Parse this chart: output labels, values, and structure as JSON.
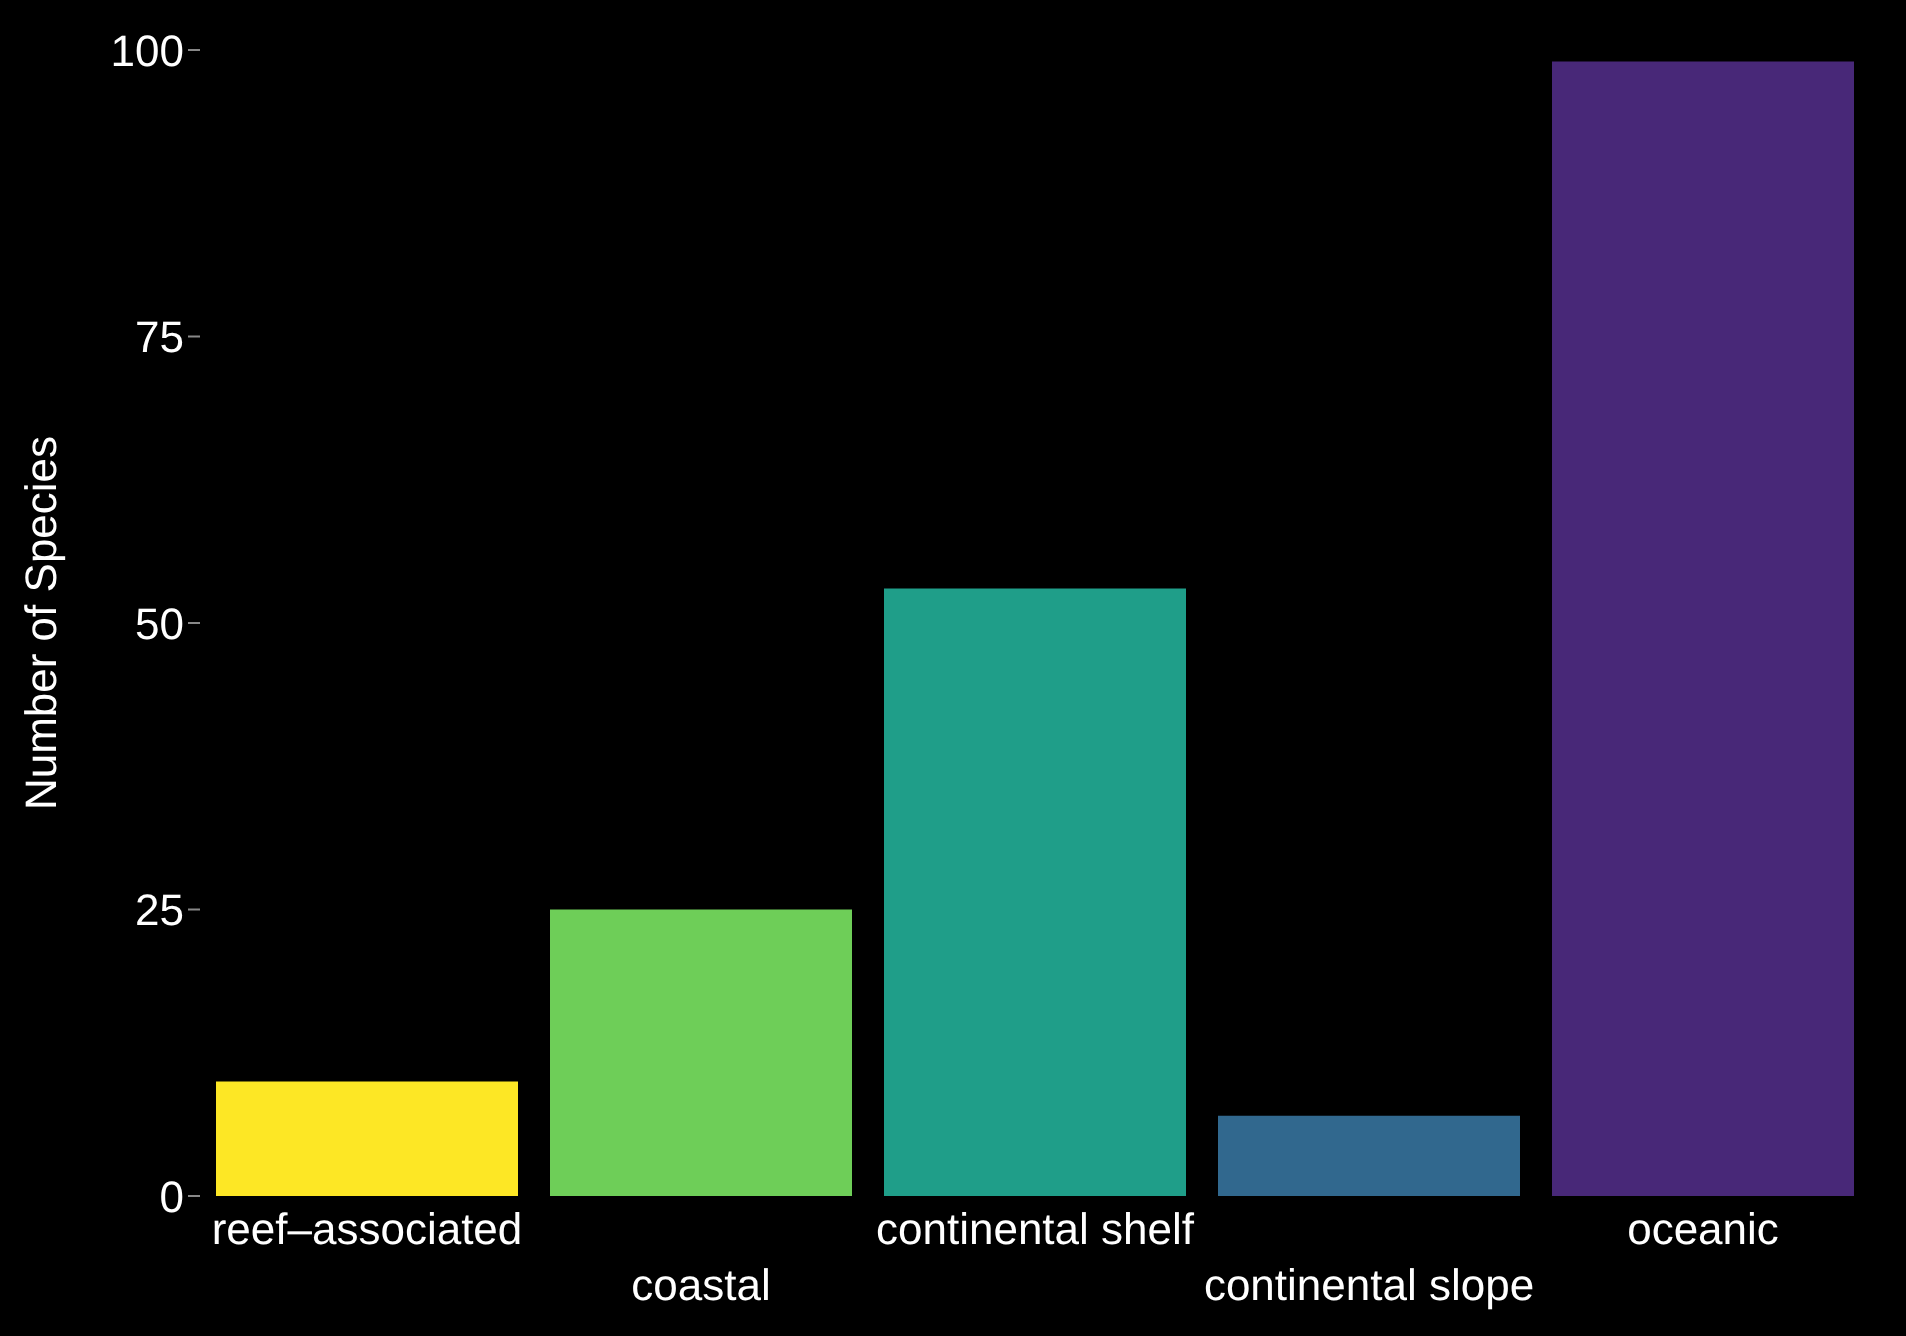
{
  "chart_data": {
    "type": "bar",
    "ylabel": "Number of Species",
    "categories": [
      "reef–associated",
      "coastal",
      "continental shelf",
      "continental slope",
      "oceanic"
    ],
    "values": [
      10,
      25,
      53,
      7,
      99
    ],
    "colors": [
      "#fde725",
      "#6ece58",
      "#1f9e89",
      "#31688e",
      "#482878"
    ],
    "ylim": [
      0,
      100
    ],
    "yticks": [
      0,
      25,
      50,
      75,
      100
    ],
    "grid": false
  }
}
